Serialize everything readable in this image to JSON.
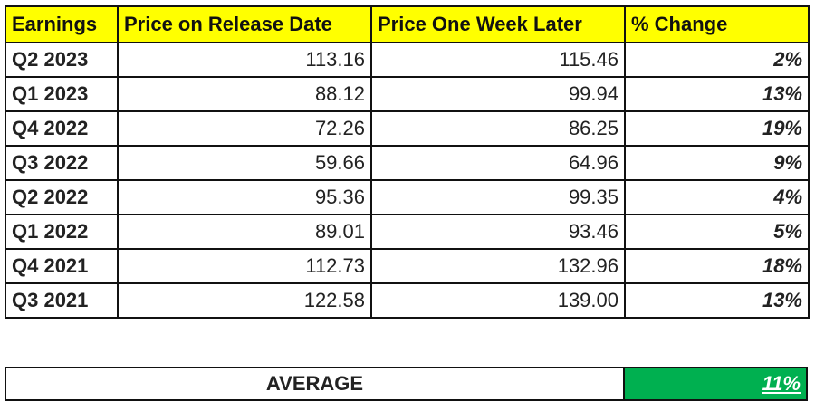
{
  "table": {
    "headers": [
      "Earnings",
      "Price on Release Date",
      "Price One Week Later",
      "% Change"
    ],
    "rows": [
      {
        "earnings": "Q2 2023",
        "release_price": "113.16",
        "week_later_price": "115.46",
        "change": "2%"
      },
      {
        "earnings": "Q1 2023",
        "release_price": "88.12",
        "week_later_price": "99.94",
        "change": "13%"
      },
      {
        "earnings": "Q4 2022",
        "release_price": "72.26",
        "week_later_price": "86.25",
        "change": "19%"
      },
      {
        "earnings": "Q3 2022",
        "release_price": "59.66",
        "week_later_price": "64.96",
        "change": "9%"
      },
      {
        "earnings": "Q2 2022",
        "release_price": "95.36",
        "week_later_price": "99.35",
        "change": "4%"
      },
      {
        "earnings": "Q1 2022",
        "release_price": "89.01",
        "week_later_price": "93.46",
        "change": "5%"
      },
      {
        "earnings": "Q4 2021",
        "release_price": "112.73",
        "week_later_price": "132.96",
        "change": "18%"
      },
      {
        "earnings": "Q3 2021",
        "release_price": "122.58",
        "week_later_price": "139.00",
        "change": "13%"
      }
    ]
  },
  "summary": {
    "label": "AVERAGE",
    "value": "11%"
  },
  "colors": {
    "header_fill": "#FFFF00",
    "average_fill": "#00B050",
    "border": "#111111"
  }
}
